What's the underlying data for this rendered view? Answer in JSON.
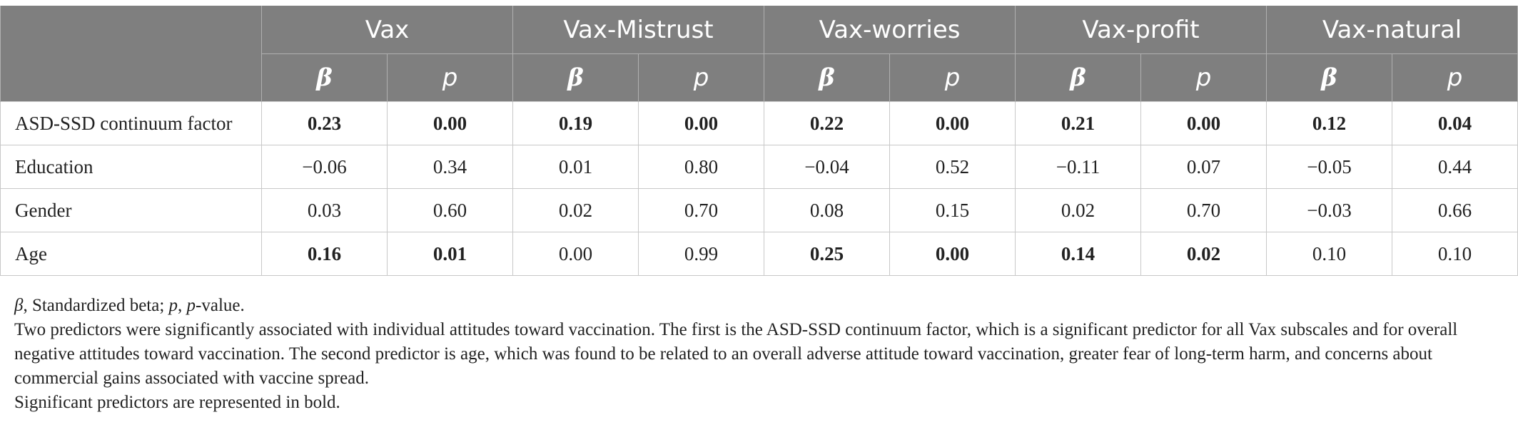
{
  "table": {
    "groups": [
      "Vax",
      "Vax-Mistrust",
      "Vax-worries",
      "Vax-profit",
      "Vax-natural"
    ],
    "beta_symbol": "β",
    "p_symbol": "p",
    "rows": [
      {
        "label": "ASD-SSD continuum factor",
        "cells": [
          {
            "v": "0.23",
            "bold": true
          },
          {
            "v": "0.00",
            "bold": true
          },
          {
            "v": "0.19",
            "bold": true
          },
          {
            "v": "0.00",
            "bold": true
          },
          {
            "v": "0.22",
            "bold": true
          },
          {
            "v": "0.00",
            "bold": true
          },
          {
            "v": "0.21",
            "bold": true
          },
          {
            "v": "0.00",
            "bold": true
          },
          {
            "v": "0.12",
            "bold": true
          },
          {
            "v": "0.04",
            "bold": true
          }
        ]
      },
      {
        "label": "Education",
        "cells": [
          {
            "v": "−0.06",
            "bold": false
          },
          {
            "v": "0.34",
            "bold": false
          },
          {
            "v": "0.01",
            "bold": false
          },
          {
            "v": "0.80",
            "bold": false
          },
          {
            "v": "−0.04",
            "bold": false
          },
          {
            "v": "0.52",
            "bold": false
          },
          {
            "v": "−0.11",
            "bold": false
          },
          {
            "v": "0.07",
            "bold": false
          },
          {
            "v": "−0.05",
            "bold": false
          },
          {
            "v": "0.44",
            "bold": false
          }
        ]
      },
      {
        "label": "Gender",
        "cells": [
          {
            "v": "0.03",
            "bold": false
          },
          {
            "v": "0.60",
            "bold": false
          },
          {
            "v": "0.02",
            "bold": false
          },
          {
            "v": "0.70",
            "bold": false
          },
          {
            "v": "0.08",
            "bold": false
          },
          {
            "v": "0.15",
            "bold": false
          },
          {
            "v": "0.02",
            "bold": false
          },
          {
            "v": "0.70",
            "bold": false
          },
          {
            "v": "−0.03",
            "bold": false
          },
          {
            "v": "0.66",
            "bold": false
          }
        ]
      },
      {
        "label": "Age",
        "cells": [
          {
            "v": "0.16",
            "bold": true
          },
          {
            "v": "0.01",
            "bold": true
          },
          {
            "v": "0.00",
            "bold": false
          },
          {
            "v": "0.99",
            "bold": false
          },
          {
            "v": "0.25",
            "bold": true
          },
          {
            "v": "0.00",
            "bold": true
          },
          {
            "v": "0.14",
            "bold": true
          },
          {
            "v": "0.02",
            "bold": true
          },
          {
            "v": "0.10",
            "bold": false
          },
          {
            "v": "0.10",
            "bold": false
          }
        ]
      }
    ]
  },
  "notes": {
    "abbrev_beta_sym": "β",
    "abbrev_beta_text": ", Standardized beta; ",
    "abbrev_p_sym": "p",
    "abbrev_p_text1": ", ",
    "abbrev_p_sym2": "p",
    "abbrev_p_text2": "-value.",
    "paragraph": "Two predictors were significantly associated with individual attitudes toward vaccination. The first is the ASD-SSD continuum factor, which is a significant predictor for all Vax subscales and for overall negative attitudes toward vaccination. The second predictor is age, which was found to be related to an overall adverse attitude toward vaccination, greater fear of long-term harm, and concerns about commercial gains associated with vaccine spread.",
    "bold_note": "Significant predictors are represented in bold."
  }
}
